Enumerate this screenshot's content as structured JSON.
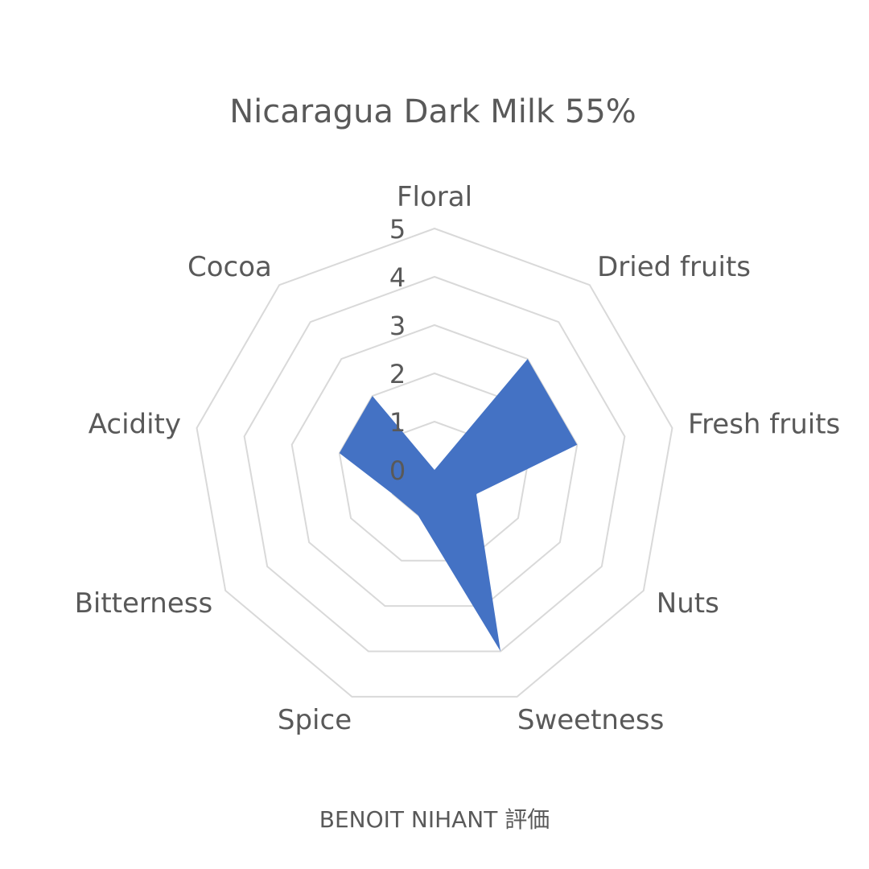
{
  "chart_data": {
    "type": "radar",
    "title": "Nicaragua Dark Milk 55%",
    "categories": [
      "Floral",
      "Dried fruits",
      "Fresh fruits",
      "Nuts",
      "Sweetness",
      "Spice",
      "Bitterness",
      "Acidity",
      "Cocoa"
    ],
    "series": [
      {
        "values": [
          0,
          3,
          3,
          1,
          4,
          1,
          1,
          2,
          2
        ],
        "color": "#4472C4",
        "style": "filled"
      }
    ],
    "rlim": [
      0,
      5
    ],
    "ticks": [
      "0",
      "1",
      "2",
      "3",
      "4",
      "5"
    ],
    "grid": true,
    "grid_color": "#D9D9D9",
    "footer": "BENOIT NIHANT 評価"
  }
}
